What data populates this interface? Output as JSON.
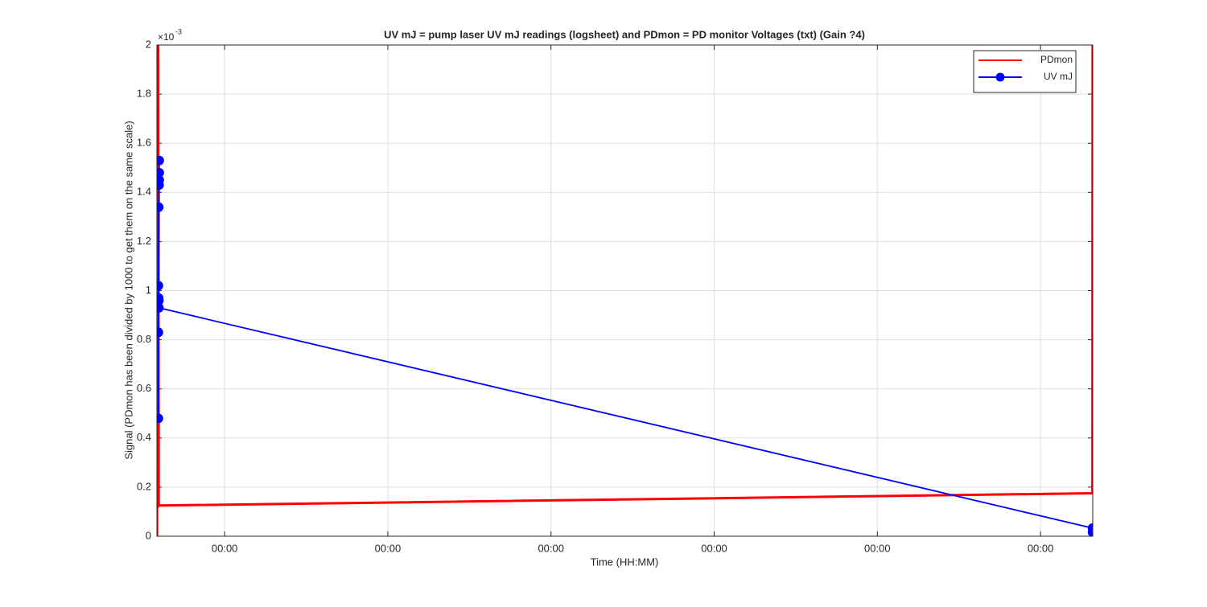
{
  "chart_data": {
    "type": "line",
    "title": "UV mJ = pump laser UV mJ readings (logsheet) and PDmon = PD monitor Voltages (txt) (Gain ?4)",
    "x_label": "Time (HH:MM)",
    "y_label": "Signal (PDmon has been divided by 1000 to get them on the same scale)",
    "y_exponent": {
      "base": "×10",
      "power": "-3"
    },
    "xlim": [
      0.585,
      6.32
    ],
    "ylim": [
      0,
      0.002
    ],
    "xticks": [
      {
        "value": 1,
        "label": "00:00"
      },
      {
        "value": 2,
        "label": "00:00"
      },
      {
        "value": 3,
        "label": "00:00"
      },
      {
        "value": 4,
        "label": "00:00"
      },
      {
        "value": 5,
        "label": "00:00"
      },
      {
        "value": 6,
        "label": "00:00"
      }
    ],
    "yticks": [
      0,
      {
        "value": 0.0002,
        "label": "0.2"
      },
      {
        "value": 0.0004,
        "label": "0.4"
      },
      {
        "value": 0.0006,
        "label": "0.6"
      },
      {
        "value": 0.0008,
        "label": "0.8"
      },
      {
        "value": 0.001,
        "label": "1"
      },
      {
        "value": 0.0012,
        "label": "1.2"
      },
      {
        "value": 0.0014,
        "label": "1.4"
      },
      {
        "value": 0.0016,
        "label": "1.6"
      },
      {
        "value": 0.0018,
        "label": "1.8"
      },
      {
        "value": 0.002,
        "label": "2"
      }
    ],
    "grid": true,
    "legend": "northeast",
    "series": [
      {
        "name": "PDmon",
        "color": "#ff0000",
        "marker": false,
        "x": [
          0.586,
          0.588,
          0.591,
          0.593,
          0.596,
          6.318,
          6.319
        ],
        "values": [
          0,
          0.002,
          0.00012,
          0.002,
          0.000125,
          0.000175,
          0.002
        ]
      },
      {
        "name": "UV mJ",
        "color": "#0000ff",
        "marker": true,
        "x": [
          0.594,
          0.594,
          0.595,
          0.594,
          0.596,
          0.598,
          0.599,
          0.599,
          0.599,
          0.597,
          0.597,
          6.319,
          6.319
        ],
        "values": [
          0.00048,
          0.00083,
          0.00097,
          0.00102,
          0.00134,
          0.00143,
          0.00145,
          0.00148,
          0.00153,
          0.00096,
          0.00093,
          3.3e-05,
          1.6e-05
        ]
      }
    ]
  }
}
